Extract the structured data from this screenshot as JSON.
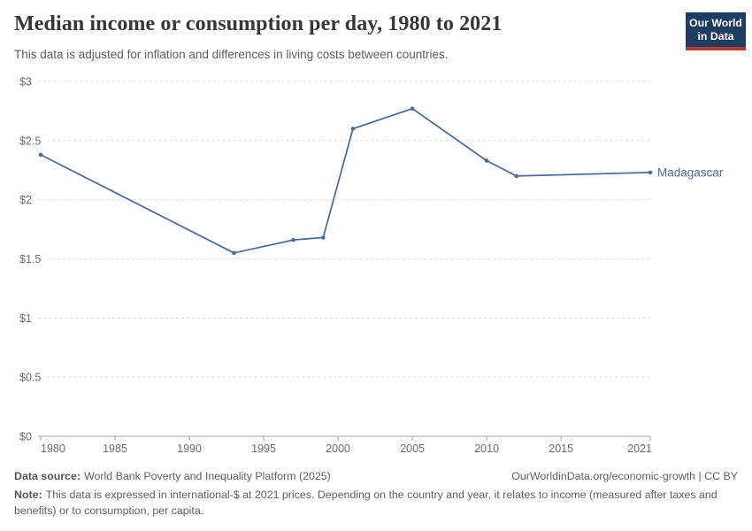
{
  "header": {
    "title": "Median income or consumption per day, 1980 to 2021",
    "subtitle": "This data is adjusted for inflation and differences in living costs between countries.",
    "logo": {
      "line1": "Our World",
      "line2": "in Data"
    }
  },
  "chart_data": {
    "type": "line",
    "title": "Median income or consumption per day, 1980 to 2021",
    "x": [
      1980,
      1993,
      1997,
      1999,
      2001,
      2005,
      2010,
      2012,
      2021
    ],
    "series": [
      {
        "name": "Madagascar",
        "values": [
          2.38,
          1.55,
          1.66,
          1.68,
          2.6,
          2.77,
          2.33,
          2.2,
          2.23
        ]
      }
    ],
    "xlim": [
      1980,
      2021
    ],
    "ylim": [
      0,
      3
    ],
    "x_ticks": [
      1980,
      1985,
      1990,
      1995,
      2000,
      2005,
      2010,
      2015,
      2021
    ],
    "y_ticks": [
      0,
      0.5,
      1,
      1.5,
      2,
      2.5,
      3
    ],
    "y_tick_labels": [
      "$0",
      "$0.5",
      "$1",
      "$1.5",
      "$2",
      "$2.5",
      "$3"
    ],
    "grid": "horizontal-dashed",
    "legend": "line-end-label"
  },
  "footer": {
    "datasource_label": "Data source:",
    "datasource_text": "World Bank Poverty and Inequality Platform (2025)",
    "license_text": "OurWorldinData.org/economic-growth | CC BY",
    "note_label": "Note:",
    "note_text": "This data is expressed in international-$ at 2021 prices. Depending on the country and year, it relates to income (measured after taxes and benefits) or to consumption, per capita."
  },
  "colors": {
    "line": "#4c6a9c",
    "grid": "#dcdcdc",
    "axis": "#a5a5a5",
    "axis_text": "#6e6e6e",
    "logo_bg": "#1d3d63",
    "logo_bar": "#c0392b"
  }
}
